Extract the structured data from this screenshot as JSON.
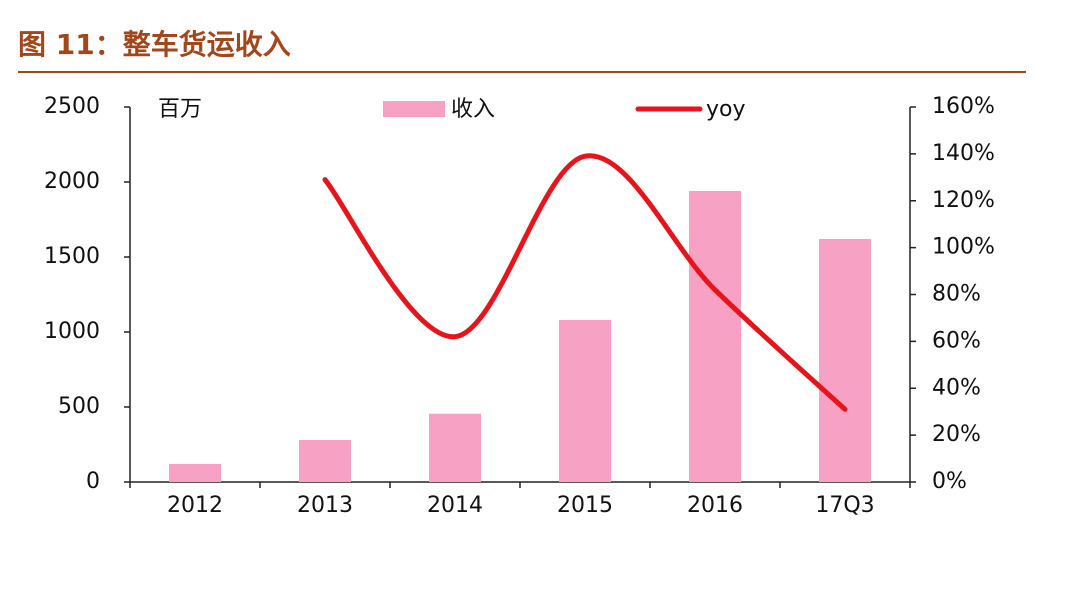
{
  "chart_data": {
    "type": "bar-line",
    "title": "图 11：整车货运收入",
    "y_unit": "百万",
    "categories": [
      "2012",
      "2013",
      "2014",
      "2015",
      "2016",
      "17Q3"
    ],
    "series": [
      {
        "name": "收入",
        "type": "bar",
        "color": "#f7a1c4",
        "values": [
          120,
          280,
          455,
          1080,
          1940,
          1620
        ]
      },
      {
        "name": "yoy",
        "type": "line",
        "axis": "y2",
        "color": "#e8141b",
        "values": [
          null,
          129,
          62,
          139,
          82,
          31
        ]
      }
    ],
    "ylim": [
      0,
      2500
    ],
    "yticks": [
      0,
      500,
      1000,
      1500,
      2000,
      2500
    ],
    "y2lim": [
      0,
      160
    ],
    "y2ticks": [
      {
        "value": 0,
        "label": "0%"
      },
      {
        "value": 20,
        "label": "20%"
      },
      {
        "value": 40,
        "label": "40%"
      },
      {
        "value": 60,
        "label": "60%"
      },
      {
        "value": 80,
        "label": "80%"
      },
      {
        "value": 100,
        "label": "100%"
      },
      {
        "value": 120,
        "label": "120%"
      },
      {
        "value": 140,
        "label": "140%"
      },
      {
        "value": 160,
        "label": "160%"
      }
    ],
    "grid": false,
    "legend": "top"
  }
}
